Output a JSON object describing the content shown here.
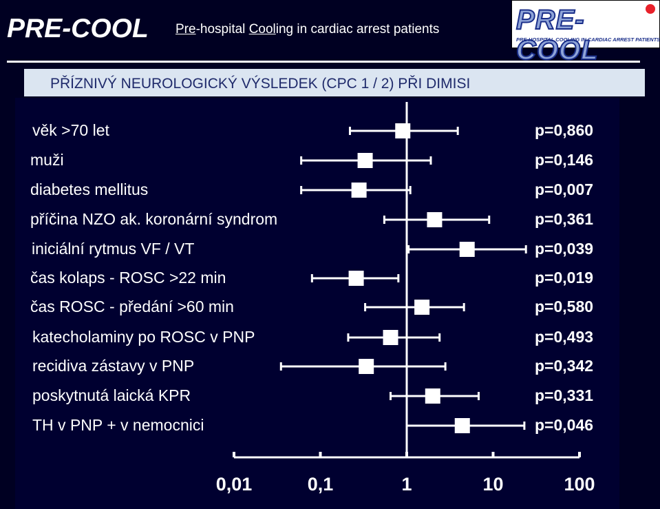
{
  "header": {
    "title": "PRE-COOL",
    "subtitle_pre": "Pre",
    "subtitle_mid1": "-hospital ",
    "subtitle_cool": "Cool",
    "subtitle_rest": "ing in cardiac arrest patients"
  },
  "logo": {
    "text": "PRE-COOL",
    "tagline": "PRE-HOSPITAL COOLING IN CARDIAC ARREST PATIENTS",
    "dot_color": "#e8212a",
    "text_color": "#1b2f8a"
  },
  "banner": {
    "text": "PŘÍZNIVÝ NEUROLOGICKÝ VÝSLEDEK (CPC 1 / 2) PŘI DIMISI"
  },
  "chart_data": {
    "type": "forest",
    "scale": "log",
    "xlim": [
      0.01,
      100
    ],
    "reference_line": 1,
    "tick_labels": [
      "0,01",
      "0,1",
      "1",
      "10",
      "100"
    ],
    "tick_values": [
      0.01,
      0.1,
      1,
      10,
      100
    ],
    "rows": [
      {
        "label": "věk >70 let",
        "estimate": 0.9,
        "low": 0.22,
        "high": 3.9,
        "p": "p=0,860"
      },
      {
        "label": "muži",
        "estimate": 0.33,
        "low": 0.06,
        "high": 1.9,
        "p": "p=0,146"
      },
      {
        "label": "diabetes mellitus",
        "estimate": 0.28,
        "low": 0.06,
        "high": 1.1,
        "p": "p=0,007"
      },
      {
        "label": "příčina NZO ak. koronární syndrom",
        "estimate": 2.1,
        "low": 0.55,
        "high": 9.0,
        "p": "p=0,361"
      },
      {
        "label": "iniciální rytmus VF / VT",
        "estimate": 5.0,
        "low": 1.05,
        "high": 24.0,
        "p": "p=0,039"
      },
      {
        "label": "čas kolaps - ROSC >22 min",
        "estimate": 0.26,
        "low": 0.08,
        "high": 0.8,
        "p": "p=0,019"
      },
      {
        "label": "čas ROSC - předání >60 min",
        "estimate": 1.5,
        "low": 0.33,
        "high": 4.6,
        "p": "p=0,580"
      },
      {
        "label": "katecholaminy po ROSC v PNP",
        "estimate": 0.65,
        "low": 0.21,
        "high": 2.4,
        "p": "p=0,493"
      },
      {
        "label": "recidiva zástavy v PNP",
        "estimate": 0.34,
        "low": 0.035,
        "high": 2.8,
        "p": "p=0,342"
      },
      {
        "label": "poskytnutá laická KPR",
        "estimate": 2.0,
        "low": 0.65,
        "high": 6.8,
        "p": "p=0,331"
      },
      {
        "label": "TH v PNP + v nemocnici",
        "estimate": 4.4,
        "low": 1.0,
        "high": 23.0,
        "p": "p=0,046"
      }
    ]
  }
}
